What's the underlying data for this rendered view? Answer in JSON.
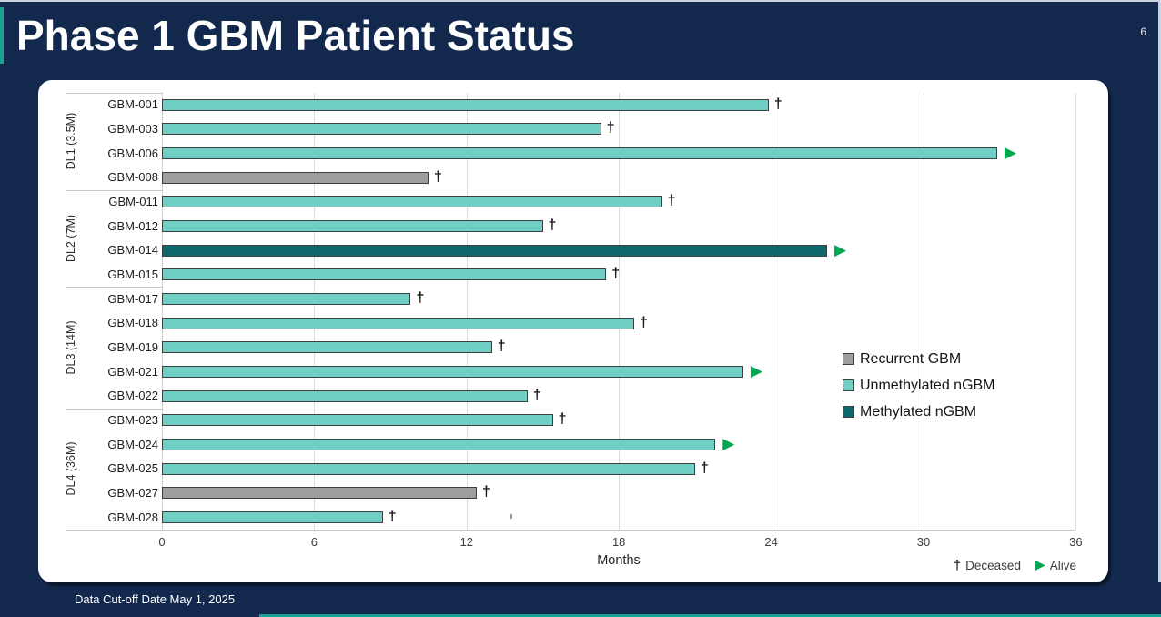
{
  "slide": {
    "title": "Phase 1 GBM Patient Status",
    "page_number": "6",
    "footer_note": "Data Cut-off Date May 1, 2025"
  },
  "chart_data": {
    "type": "bar",
    "orientation": "horizontal",
    "xlabel": "Months",
    "xlim": [
      0,
      36
    ],
    "x_ticks": [
      0,
      6,
      12,
      18,
      24,
      30,
      36
    ],
    "grid": true,
    "legend_position": "right-middle",
    "legend": [
      {
        "label": "Recurrent GBM",
        "color": "#9e9e9e"
      },
      {
        "label": "Unmethylated nGBM",
        "color": "#6fcfc5"
      },
      {
        "label": "Methylated nGBM",
        "color": "#0d686e"
      }
    ],
    "status_legend": [
      {
        "symbol": "†",
        "label": "Deceased"
      },
      {
        "symbol": "▶",
        "label": "Alive"
      }
    ],
    "patients": [
      {
        "id": "GBM-001",
        "group": "DL1 (3.5M)",
        "category": "Unmethylated nGBM",
        "months": 23.9,
        "status": "Deceased"
      },
      {
        "id": "GBM-003",
        "group": "DL1 (3.5M)",
        "category": "Unmethylated nGBM",
        "months": 17.3,
        "status": "Deceased"
      },
      {
        "id": "GBM-006",
        "group": "DL1 (3.5M)",
        "category": "Unmethylated nGBM",
        "months": 32.9,
        "status": "Alive"
      },
      {
        "id": "GBM-008",
        "group": "DL1 (3.5M)",
        "category": "Recurrent GBM",
        "months": 10.5,
        "status": "Deceased"
      },
      {
        "id": "GBM-011",
        "group": "DL2 (7M)",
        "category": "Unmethylated nGBM",
        "months": 19.7,
        "status": "Deceased"
      },
      {
        "id": "GBM-012",
        "group": "DL2 (7M)",
        "category": "Unmethylated nGBM",
        "months": 15.0,
        "status": "Deceased"
      },
      {
        "id": "GBM-014",
        "group": "DL2 (7M)",
        "category": "Methylated nGBM",
        "months": 26.2,
        "status": "Alive"
      },
      {
        "id": "GBM-015",
        "group": "DL2 (7M)",
        "category": "Unmethylated nGBM",
        "months": 17.5,
        "status": "Deceased"
      },
      {
        "id": "GBM-017",
        "group": "DL3 (14M)",
        "category": "Unmethylated nGBM",
        "months": 9.8,
        "status": "Deceased"
      },
      {
        "id": "GBM-018",
        "group": "DL3 (14M)",
        "category": "Unmethylated nGBM",
        "months": 18.6,
        "status": "Deceased"
      },
      {
        "id": "GBM-019",
        "group": "DL3 (14M)",
        "category": "Unmethylated nGBM",
        "months": 13.0,
        "status": "Deceased"
      },
      {
        "id": "GBM-021",
        "group": "DL3 (14M)",
        "category": "Unmethylated nGBM",
        "months": 22.9,
        "status": "Alive"
      },
      {
        "id": "GBM-022",
        "group": "DL3 (14M)",
        "category": "Unmethylated nGBM",
        "months": 14.4,
        "status": "Deceased"
      },
      {
        "id": "GBM-023",
        "group": "DL4 (36M)",
        "category": "Unmethylated nGBM",
        "months": 15.4,
        "status": "Deceased"
      },
      {
        "id": "GBM-024",
        "group": "DL4 (36M)",
        "category": "Unmethylated nGBM",
        "months": 21.8,
        "status": "Alive"
      },
      {
        "id": "GBM-025",
        "group": "DL4 (36M)",
        "category": "Unmethylated nGBM",
        "months": 21.0,
        "status": "Deceased"
      },
      {
        "id": "GBM-027",
        "group": "DL4 (36M)",
        "category": "Recurrent GBM",
        "months": 12.4,
        "status": "Deceased"
      },
      {
        "id": "GBM-028",
        "group": "DL4 (36M)",
        "category": "Unmethylated nGBM",
        "months": 8.7,
        "status": "Deceased"
      }
    ]
  },
  "colors": {
    "background_navy": "#12294d",
    "accent_teal": "#1aa18f",
    "alive_arrow_green": "#00a650",
    "recurrent_gbm": "#9e9e9e",
    "unmethylated_ngbm": "#6fcfc5",
    "methylated_ngbm": "#0d686e"
  }
}
